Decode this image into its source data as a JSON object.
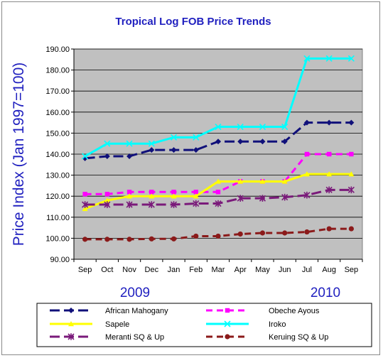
{
  "chart_data": {
    "type": "line",
    "title": "Tropical Log FOB Price Trends",
    "xlabel": "",
    "ylabel": "Price Index (Jan 1997=100)",
    "categories": [
      "Sep",
      "Oct",
      "Nov",
      "Dec",
      "Jan",
      "Feb",
      "Mar",
      "Apr",
      "May",
      "Jun",
      "Jul",
      "Aug",
      "Sep"
    ],
    "year_labels": [
      "2009",
      "2010"
    ],
    "ylim": [
      90,
      190
    ],
    "yticks": [
      "90.00",
      "100.00",
      "110.00",
      "120.00",
      "130.00",
      "140.00",
      "150.00",
      "160.00",
      "170.00",
      "180.00",
      "190.00"
    ],
    "grid": "horizontal",
    "plot_background": "#c0c0c0",
    "legend_position": "bottom",
    "series": [
      {
        "name": "African Mahogany",
        "color": "#10107a",
        "dash": "long-dash",
        "marker": "diamond",
        "values": [
          138,
          139,
          139,
          142,
          142,
          142,
          146,
          146,
          146,
          146,
          155,
          155,
          155
        ]
      },
      {
        "name": "Obeche Ayous",
        "color": "#ff00ff",
        "dash": "dash",
        "marker": "square",
        "values": [
          121,
          121,
          122,
          122,
          122,
          122,
          122,
          127,
          127,
          127,
          140,
          140,
          140
        ]
      },
      {
        "name": "Sapele",
        "color": "#ffff00",
        "dash": "solid",
        "marker": "triangle",
        "values": [
          114,
          118,
          120,
          120,
          120,
          120,
          127,
          127,
          127,
          127,
          130.5,
          130.5,
          130.5
        ]
      },
      {
        "name": "Iroko",
        "color": "#00ffff",
        "dash": "solid",
        "marker": "x",
        "values": [
          139,
          145,
          145,
          145,
          148,
          148,
          153,
          153,
          153,
          153,
          185.5,
          185.5,
          185.5
        ]
      },
      {
        "name": "Meranti SQ & Up",
        "color": "#7a1a7a",
        "dash": "long-dash",
        "marker": "star",
        "values": [
          116,
          116,
          116,
          116,
          116,
          116.5,
          116.5,
          119,
          119,
          119.5,
          120.5,
          123,
          123
        ]
      },
      {
        "name": "Keruing SQ & Up",
        "color": "#8b1a1a",
        "dash": "dash",
        "marker": "circle",
        "values": [
          99.5,
          99.5,
          99.5,
          99.7,
          99.7,
          101,
          101,
          102,
          102.5,
          102.5,
          103,
          104.5,
          104.5
        ]
      }
    ]
  }
}
